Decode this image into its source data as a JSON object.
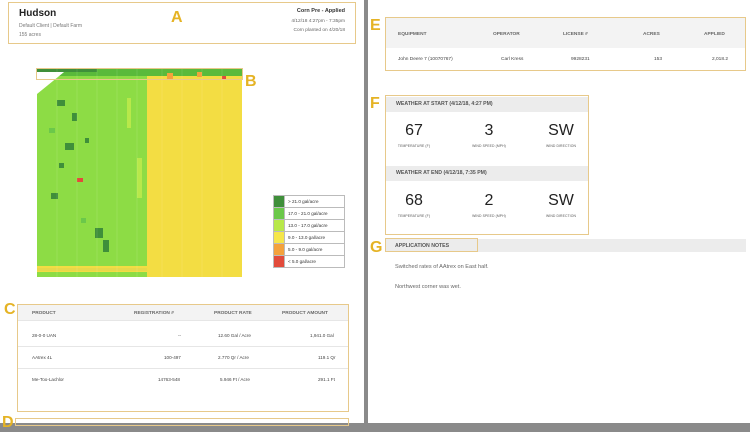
{
  "header": {
    "farm_name": "Hudson",
    "client_farm": "Default Client | Default Farm",
    "area": "155 acres",
    "operation": "Corn Pre - Applied",
    "operation_datetime": "4/12/18 4:27pm - 7:35pm",
    "planted": "Corn planted on 4/20/18"
  },
  "callouts": {
    "a": "A",
    "b": "B",
    "c": "C",
    "d": "D",
    "e": "E",
    "f": "F",
    "g": "G"
  },
  "legend": [
    {
      "label": "> 21.0 gal/acre",
      "color": "#3f8f3a"
    },
    {
      "label": "17.0 - 21.0 gal/acre",
      "color": "#6bc84a"
    },
    {
      "label": "13.0 - 17.0 gal/acre",
      "color": "#b8e84a"
    },
    {
      "label": "9.0 - 13.0 gal/acre",
      "color": "#f5e64a"
    },
    {
      "label": "5.0 - 9.0 gal/acre",
      "color": "#f4a23c"
    },
    {
      "label": "< 5.0 gal/acre",
      "color": "#e24b3b"
    }
  ],
  "products": {
    "headers": [
      "PRODUCT",
      "REGISTRATION #",
      "PRODUCT RATE",
      "PRODUCT AMOUNT"
    ],
    "rows": [
      [
        "28-0-0 UAN",
        "--",
        "12.60 Gal / Acre",
        "1,941.0 Gal"
      ],
      [
        "AAtrex 4L",
        "100-497",
        "2.770 Qr / Acre",
        "119.1 Qr"
      ],
      [
        "Me-Too-Lachlor",
        "14763-548",
        "5.946 Ft / Acre",
        "291.1 Ft"
      ]
    ]
  },
  "equipment": {
    "headers": [
      "EQUIPMENT",
      "OPERATOR",
      "LICENSE #",
      "ACRES",
      "APPLIED"
    ],
    "row": [
      "John Deere 7 (10070767)",
      "Carl Kress",
      "9928231",
      "153",
      "2,018.2"
    ]
  },
  "weather": {
    "start_title": "WEATHER AT START (4/12/18, 4:27 PM)",
    "end_title": "WEATHER AT END (4/12/18, 7:35 PM)",
    "start": {
      "temp": "67",
      "wind_speed": "3",
      "wind_dir": "SW"
    },
    "end": {
      "temp": "68",
      "wind_speed": "2",
      "wind_dir": "SW"
    },
    "labels": {
      "temp": "TEMPERATURE (F)",
      "wind_speed": "WIND SPEED (MPH)",
      "wind_dir": "WIND DIRECTION"
    }
  },
  "notes": {
    "title": "APPLICATION NOTES",
    "lines": [
      "Switched rates of AAtrex on East half.",
      "Northwest corner was wet."
    ]
  }
}
